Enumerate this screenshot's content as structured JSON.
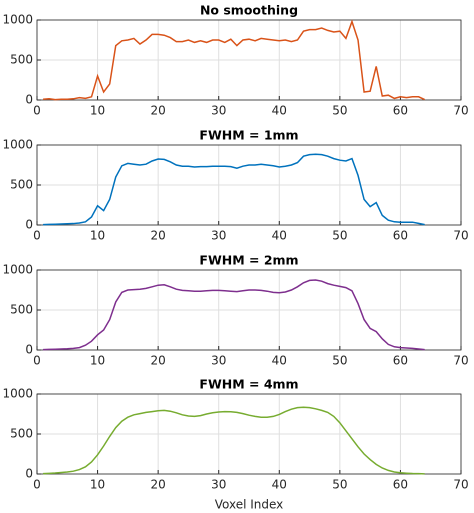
{
  "chart_data": [
    {
      "type": "line",
      "title": "No smoothing",
      "x": [
        1,
        2,
        3,
        4,
        5,
        6,
        7,
        8,
        9,
        10,
        11,
        12,
        13,
        14,
        15,
        16,
        17,
        18,
        19,
        20,
        21,
        22,
        23,
        24,
        25,
        26,
        27,
        28,
        29,
        30,
        31,
        32,
        33,
        34,
        35,
        36,
        37,
        38,
        39,
        40,
        41,
        42,
        43,
        44,
        45,
        46,
        47,
        48,
        49,
        50,
        51,
        52,
        53,
        54,
        55,
        56,
        57,
        58,
        59,
        60,
        61,
        62,
        63,
        64
      ],
      "series": [
        {
          "name": "No smoothing",
          "color": "#d95319",
          "values": [
            10,
            15,
            5,
            10,
            10,
            15,
            30,
            20,
            40,
            300,
            100,
            200,
            680,
            740,
            750,
            770,
            700,
            750,
            820,
            820,
            810,
            780,
            730,
            730,
            750,
            720,
            740,
            720,
            750,
            750,
            720,
            760,
            680,
            750,
            760,
            740,
            770,
            760,
            750,
            740,
            750,
            730,
            750,
            860,
            880,
            880,
            900,
            870,
            850,
            860,
            770,
            980,
            750,
            100,
            110,
            420,
            50,
            60,
            20,
            40,
            30,
            40,
            40,
            5
          ]
        }
      ],
      "xlim": [
        0,
        70
      ],
      "ylim": [
        0,
        1000
      ],
      "xticks": [
        0,
        10,
        20,
        30,
        40,
        50,
        60,
        70
      ],
      "yticks": [
        0,
        500,
        1000
      ],
      "grid": true
    },
    {
      "type": "line",
      "title": "FWHM = 1mm",
      "x": [
        1,
        2,
        3,
        4,
        5,
        6,
        7,
        8,
        9,
        10,
        11,
        12,
        13,
        14,
        15,
        16,
        17,
        18,
        19,
        20,
        21,
        22,
        23,
        24,
        25,
        26,
        27,
        28,
        29,
        30,
        31,
        32,
        33,
        34,
        35,
        36,
        37,
        38,
        39,
        40,
        41,
        42,
        43,
        44,
        45,
        46,
        47,
        48,
        49,
        50,
        51,
        52,
        53,
        54,
        55,
        56,
        57,
        58,
        59,
        60,
        61,
        62,
        63,
        64
      ],
      "series": [
        {
          "name": "FWHM = 1mm",
          "color": "#0072bd",
          "values": [
            5,
            8,
            10,
            12,
            15,
            18,
            25,
            40,
            100,
            240,
            180,
            320,
            600,
            740,
            770,
            760,
            750,
            760,
            800,
            825,
            820,
            790,
            750,
            735,
            735,
            725,
            730,
            730,
            735,
            735,
            735,
            730,
            710,
            735,
            750,
            750,
            760,
            750,
            740,
            725,
            735,
            750,
            780,
            860,
            880,
            885,
            880,
            860,
            830,
            810,
            800,
            830,
            620,
            320,
            230,
            280,
            120,
            60,
            40,
            35,
            35,
            35,
            20,
            5
          ]
        }
      ],
      "xlim": [
        0,
        70
      ],
      "ylim": [
        0,
        1000
      ],
      "xticks": [
        0,
        10,
        20,
        30,
        40,
        50,
        60,
        70
      ],
      "yticks": [
        0,
        500,
        1000
      ],
      "grid": true
    },
    {
      "type": "line",
      "title": "FWHM = 2mm",
      "x": [
        1,
        2,
        3,
        4,
        5,
        6,
        7,
        8,
        9,
        10,
        11,
        12,
        13,
        14,
        15,
        16,
        17,
        18,
        19,
        20,
        21,
        22,
        23,
        24,
        25,
        26,
        27,
        28,
        29,
        30,
        31,
        32,
        33,
        34,
        35,
        36,
        37,
        38,
        39,
        40,
        41,
        42,
        43,
        44,
        45,
        46,
        47,
        48,
        49,
        50,
        51,
        52,
        53,
        54,
        55,
        56,
        57,
        58,
        59,
        60,
        61,
        62,
        63,
        64
      ],
      "series": [
        {
          "name": "FWHM = 2mm",
          "color": "#7e2f8e",
          "values": [
            5,
            8,
            10,
            12,
            15,
            20,
            30,
            60,
            110,
            190,
            250,
            380,
            600,
            720,
            750,
            755,
            760,
            770,
            790,
            810,
            815,
            790,
            760,
            745,
            740,
            735,
            735,
            740,
            745,
            745,
            740,
            735,
            730,
            740,
            750,
            750,
            745,
            735,
            720,
            715,
            725,
            750,
            790,
            840,
            870,
            875,
            860,
            830,
            810,
            795,
            780,
            740,
            580,
            380,
            270,
            230,
            140,
            70,
            40,
            30,
            25,
            20,
            12,
            5
          ]
        }
      ],
      "xlim": [
        0,
        70
      ],
      "ylim": [
        0,
        1000
      ],
      "xticks": [
        0,
        10,
        20,
        30,
        40,
        50,
        60,
        70
      ],
      "yticks": [
        0,
        500,
        1000
      ],
      "grid": true
    },
    {
      "type": "line",
      "title": "FWHM = 4mm",
      "xlabel": "Voxel Index",
      "x": [
        1,
        2,
        3,
        4,
        5,
        6,
        7,
        8,
        9,
        10,
        11,
        12,
        13,
        14,
        15,
        16,
        17,
        18,
        19,
        20,
        21,
        22,
        23,
        24,
        25,
        26,
        27,
        28,
        29,
        30,
        31,
        32,
        33,
        34,
        35,
        36,
        37,
        38,
        39,
        40,
        41,
        42,
        43,
        44,
        45,
        46,
        47,
        48,
        49,
        50,
        51,
        52,
        53,
        54,
        55,
        56,
        57,
        58,
        59,
        60,
        61,
        62,
        63,
        64
      ],
      "series": [
        {
          "name": "FWHM = 4mm",
          "color": "#77ac30",
          "values": [
            5,
            8,
            12,
            18,
            25,
            35,
            55,
            90,
            150,
            240,
            350,
            470,
            580,
            660,
            710,
            740,
            755,
            770,
            780,
            790,
            795,
            785,
            765,
            740,
            725,
            720,
            730,
            750,
            765,
            775,
            780,
            778,
            770,
            755,
            735,
            720,
            710,
            710,
            720,
            745,
            780,
            810,
            830,
            835,
            830,
            815,
            795,
            770,
            720,
            640,
            540,
            440,
            340,
            250,
            180,
            120,
            75,
            45,
            25,
            15,
            10,
            6,
            4,
            2
          ]
        }
      ],
      "xlim": [
        0,
        70
      ],
      "ylim": [
        0,
        1000
      ],
      "xticks": [
        0,
        10,
        20,
        30,
        40,
        50,
        60,
        70
      ],
      "yticks": [
        0,
        500,
        1000
      ],
      "grid": true
    }
  ]
}
